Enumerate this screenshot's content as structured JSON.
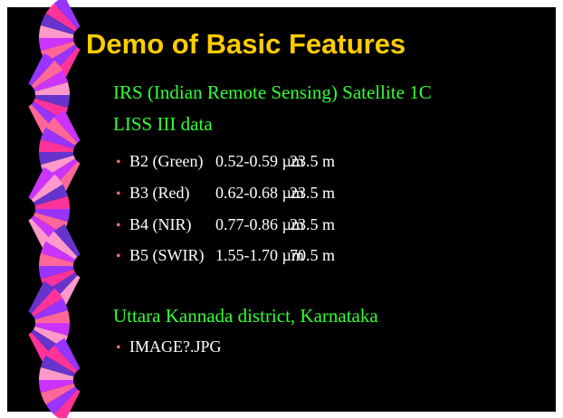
{
  "title": "Demo of Basic Features",
  "bullets": [
    {
      "text": "IRS (Indian Remote Sensing) Satellite 1C"
    },
    {
      "text": "LISS III data",
      "sub": [
        [
          "B2 (Green)",
          "0.52-0.59 µm",
          "23.5 m"
        ],
        [
          "B3 (Red)",
          "0.62-0.68 µm",
          "23.5 m"
        ],
        [
          "B4 (NIR)",
          "0.77-0.86 µm",
          "23.5 m"
        ],
        [
          "B5 (SWIR)",
          "1.55-1.70 µm",
          "70.5 m"
        ]
      ]
    },
    {
      "text": "Uttara Kannada district, Karnataka",
      "sub": [
        [
          "IMAGE?.JPG"
        ]
      ]
    }
  ]
}
